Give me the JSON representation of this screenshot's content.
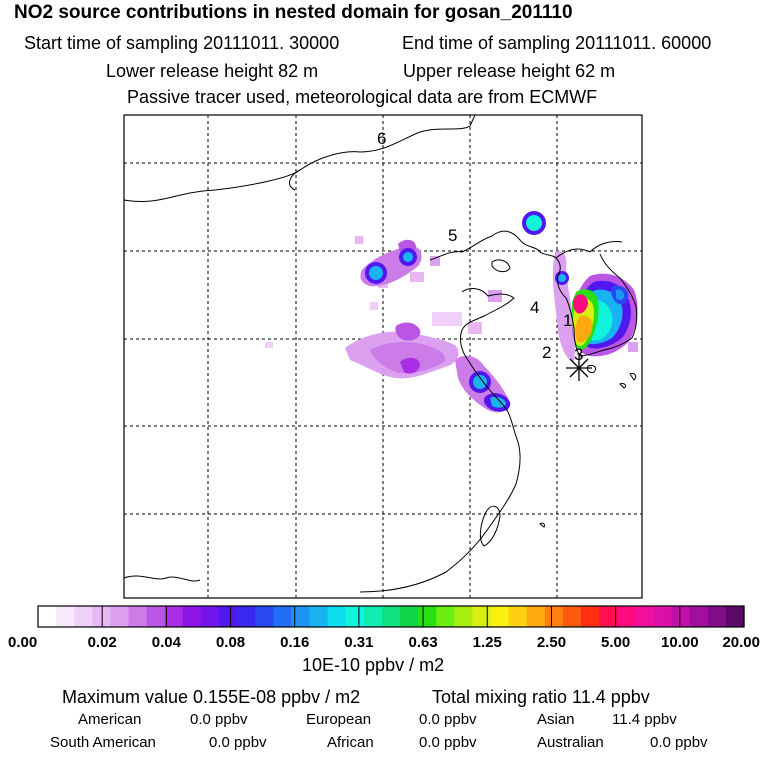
{
  "header": {
    "title": "NO2 source contributions in nested domain for gosan_201110",
    "start_label": "Start time of sampling 20111011. 30000",
    "end_label": "End time of sampling 20111011. 60000",
    "lower_label": "Lower release height   82 m",
    "upper_label": "Upper release height   62 m",
    "tracer_note": "Passive tracer used, meteorological data are from ECMWF"
  },
  "map": {
    "region_labels": [
      "6",
      "5",
      "4",
      "1",
      "2",
      "3"
    ]
  },
  "colorbar": {
    "ticks": [
      "0.00",
      "0.02",
      "0.04",
      "0.08",
      "0.16",
      "0.31",
      "0.63",
      "1.25",
      "2.50",
      "5.00",
      "10.00",
      "20.00"
    ],
    "unit": "10E-10 ppbv / m2",
    "colors": [
      "#ffffff",
      "#f8e8fc",
      "#f0d0f8",
      "#e8b8f4",
      "#dca0f0",
      "#cc7ce8",
      "#bb55e6",
      "#aa2ee6",
      "#8f14e8",
      "#7414ec",
      "#5018ef",
      "#3a28f0",
      "#2848f2",
      "#2070f4",
      "#1e94f4",
      "#18b4f2",
      "#10dcf0",
      "#10f4dc",
      "#10ecb0",
      "#10e080",
      "#12d44a",
      "#28e010",
      "#6cee10",
      "#a8ee10",
      "#d8ee10",
      "#f8f010",
      "#ffd010",
      "#ffa810",
      "#ff8010",
      "#ff5a10",
      "#ff3010",
      "#ff1050",
      "#ff0a80",
      "#f010a0",
      "#dc10a8",
      "#c010a8",
      "#a010a0",
      "#800c88",
      "#5c0866"
    ]
  },
  "stats": {
    "max_label": "Maximum value  0.155E-08 ppbv / m2",
    "total_label": "Total mixing ratio       11.4 ppbv",
    "american": "American",
    "american_val": "0.0 ppbv",
    "european": "European",
    "european_val": "0.0 ppbv",
    "asian": "Asian",
    "asian_val": "11.4 ppbv",
    "south_american": "South American",
    "south_american_val": "0.0 ppbv",
    "african": "African",
    "african_val": "0.0 ppbv",
    "australian": "Australian",
    "australian_val": "0.0 ppbv"
  }
}
